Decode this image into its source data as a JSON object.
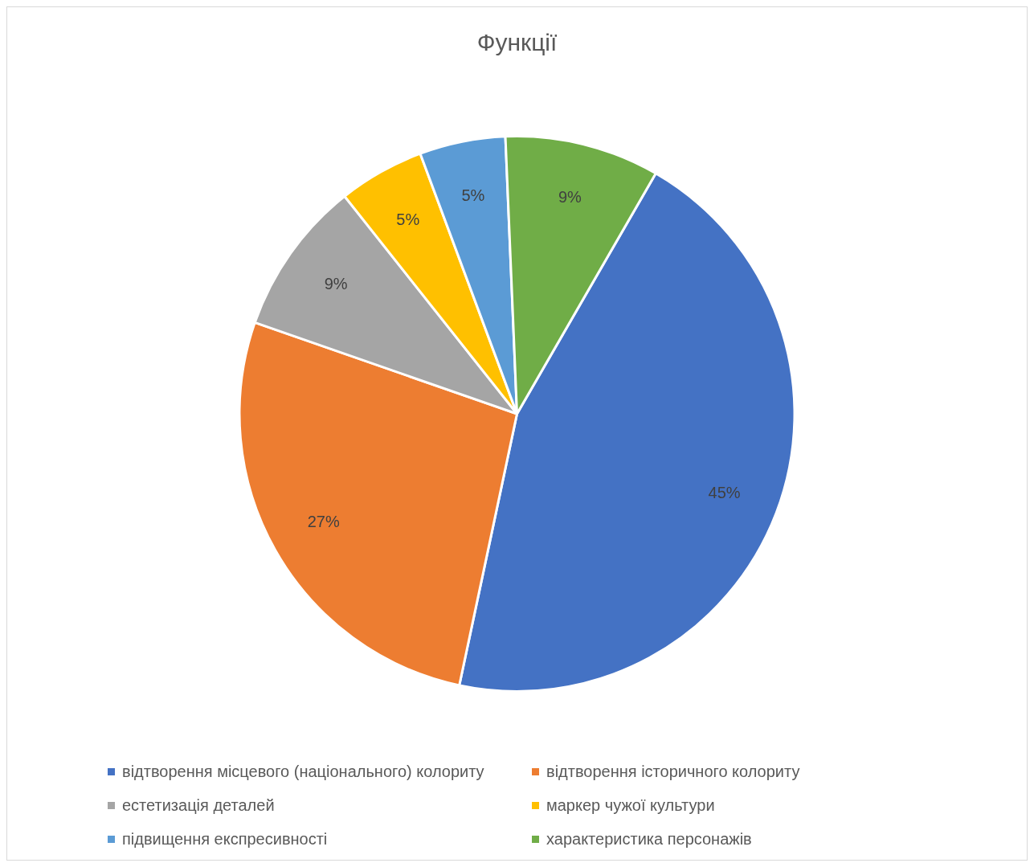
{
  "chart_data": {
    "type": "pie",
    "title": "Функції",
    "categories": [
      "відтворення місцевого (національного) колориту",
      "відтворення історичного колориту",
      "естетизація деталей",
      "маркер чужої культури",
      "підвищення експресивності",
      "характеристика персонажів"
    ],
    "values": [
      45,
      27,
      9,
      5,
      5,
      9
    ],
    "colors": [
      "#4472c4",
      "#ed7d31",
      "#a5a5a5",
      "#ffc000",
      "#5b9bd5",
      "#70ad47"
    ],
    "value_labels": [
      "45%",
      "27%",
      "9%",
      "5%",
      "5%",
      "9%"
    ],
    "legend": "bottom"
  }
}
